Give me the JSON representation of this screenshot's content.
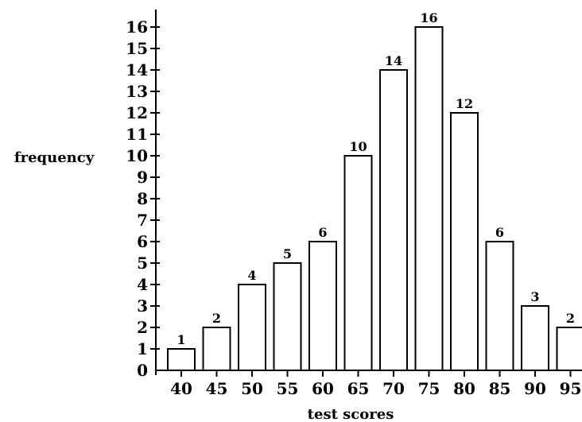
{
  "chart_data": {
    "type": "bar",
    "title": "",
    "xlabel": "test scores",
    "ylabel": "frequency",
    "categories": [
      "40",
      "45",
      "50",
      "55",
      "60",
      "65",
      "70",
      "75",
      "80",
      "85",
      "90",
      "95"
    ],
    "values": [
      1,
      2,
      4,
      5,
      6,
      10,
      14,
      16,
      12,
      6,
      3,
      2
    ],
    "data_labels": [
      "1",
      "2",
      "4",
      "5",
      "6",
      "10",
      "14",
      "16",
      "12",
      "6",
      "3",
      "2"
    ],
    "y_ticks": [
      "0",
      "1",
      "2",
      "3",
      "4",
      "5",
      "6",
      "7",
      "8",
      "9",
      "10",
      "11",
      "12",
      "13",
      "14",
      "15",
      "16"
    ],
    "ylim": [
      0,
      16
    ],
    "grid": false,
    "legend": "none",
    "colors": {
      "bar_fill": "#ffffff",
      "bar_stroke": "#000000",
      "axis": "#000000"
    }
  }
}
